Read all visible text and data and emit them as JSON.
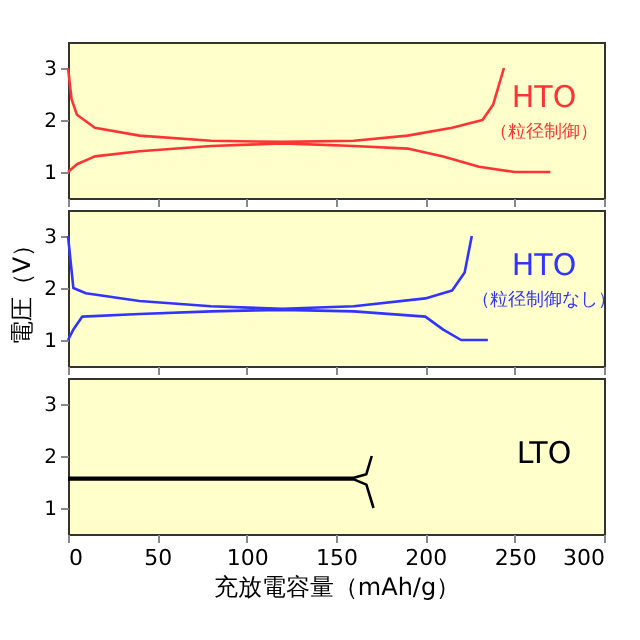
{
  "chart_data": [
    {
      "type": "line",
      "xlim": [
        0,
        300
      ],
      "xticks": [
        0,
        50,
        100,
        150,
        200,
        250,
        300
      ],
      "ylim": [
        0.5,
        3.5
      ],
      "yticks": [
        1,
        2,
        3
      ],
      "tick_labels": "y",
      "grid": false,
      "marker": "none",
      "line_style": "solid",
      "annotations": [
        "HTO",
        "（粒径制御）"
      ],
      "series": [
        {
          "color": "#ff3333",
          "x": [
            0,
            2,
            5,
            15,
            40,
            80,
            120,
            160,
            190,
            215,
            232,
            238,
            244
          ],
          "values": [
            3.0,
            2.4,
            2.1,
            1.85,
            1.7,
            1.6,
            1.58,
            1.6,
            1.7,
            1.85,
            2.0,
            2.3,
            3.0
          ]
        },
        {
          "color": "#ff3333",
          "x": [
            0,
            5,
            15,
            40,
            80,
            120,
            160,
            190,
            210,
            230,
            250,
            270
          ],
          "values": [
            1.0,
            1.15,
            1.3,
            1.4,
            1.5,
            1.55,
            1.5,
            1.45,
            1.3,
            1.1,
            1.0,
            1.0
          ]
        }
      ]
    },
    {
      "type": "line",
      "xlim": [
        0,
        300
      ],
      "xticks": [
        0,
        50,
        100,
        150,
        200,
        250,
        300
      ],
      "ylim": [
        0.5,
        3.5
      ],
      "yticks": [
        1,
        2,
        3
      ],
      "ylabel": "電圧（V）",
      "tick_labels": "y",
      "grid": false,
      "marker": "none",
      "line_style": "solid",
      "annotations": [
        "HTO",
        "（粒径制御なし）"
      ],
      "series": [
        {
          "color": "#3333ff",
          "x": [
            0,
            3,
            10,
            40,
            80,
            120,
            160,
            200,
            215,
            222,
            226
          ],
          "values": [
            3.0,
            2.0,
            1.9,
            1.75,
            1.65,
            1.6,
            1.65,
            1.8,
            1.95,
            2.3,
            3.0
          ]
        },
        {
          "color": "#3333ff",
          "x": [
            0,
            3,
            8,
            40,
            80,
            120,
            160,
            200,
            210,
            220,
            235
          ],
          "values": [
            1.0,
            1.2,
            1.45,
            1.5,
            1.55,
            1.58,
            1.55,
            1.45,
            1.2,
            1.0,
            1.0
          ]
        }
      ]
    },
    {
      "type": "line",
      "xlim": [
        0,
        300
      ],
      "xticks": [
        0,
        50,
        100,
        150,
        200,
        250,
        300
      ],
      "ylim": [
        0.5,
        3.5
      ],
      "yticks": [
        1,
        2,
        3
      ],
      "xlabel": "充放電容量（mAh/g）",
      "grid": false,
      "marker": "none",
      "line_style": "solid",
      "annotations": [
        "LTO"
      ],
      "series": [
        {
          "color": "#000000",
          "x": [
            0,
            160,
            167,
            170
          ],
          "values": [
            1.58,
            1.58,
            1.65,
            2.0
          ]
        },
        {
          "color": "#000000",
          "x": [
            0,
            160,
            167,
            171
          ],
          "values": [
            1.55,
            1.55,
            1.45,
            1.0
          ]
        }
      ]
    }
  ]
}
